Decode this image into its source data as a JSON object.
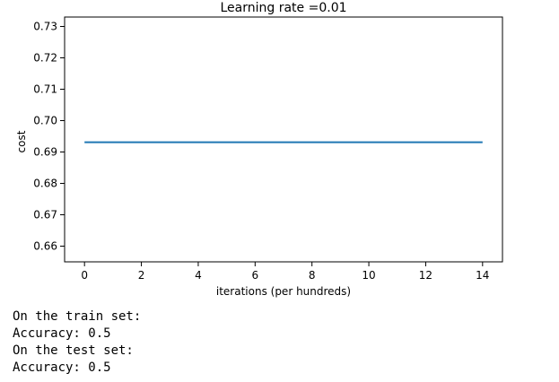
{
  "chart_data": {
    "type": "line",
    "title": "Learning rate =0.01",
    "xlabel": "iterations (per hundreds)",
    "ylabel": "cost",
    "xlim": [
      -0.7,
      14.7
    ],
    "ylim": [
      0.655,
      0.733
    ],
    "xticks": [
      0,
      2,
      4,
      6,
      8,
      10,
      12,
      14
    ],
    "xtick_labels": [
      "0",
      "2",
      "4",
      "6",
      "8",
      "10",
      "12",
      "14"
    ],
    "yticks": [
      0.66,
      0.67,
      0.68,
      0.69,
      0.7,
      0.71,
      0.72,
      0.73
    ],
    "ytick_labels": [
      "0.66",
      "0.67",
      "0.68",
      "0.69",
      "0.70",
      "0.71",
      "0.72",
      "0.73"
    ],
    "grid": false,
    "series": [
      {
        "color": "#1f77b4",
        "x": [
          0,
          1,
          2,
          3,
          4,
          5,
          6,
          7,
          8,
          9,
          10,
          11,
          12,
          13,
          14
        ],
        "values": [
          0.6931,
          0.6931,
          0.6931,
          0.6931,
          0.6931,
          0.6931,
          0.6931,
          0.6931,
          0.6931,
          0.6931,
          0.6931,
          0.6931,
          0.6931,
          0.6931,
          0.6931
        ]
      }
    ]
  },
  "output": {
    "lines": [
      "On the train set:",
      "Accuracy: 0.5",
      "On the test set:",
      "Accuracy: 0.5"
    ]
  }
}
